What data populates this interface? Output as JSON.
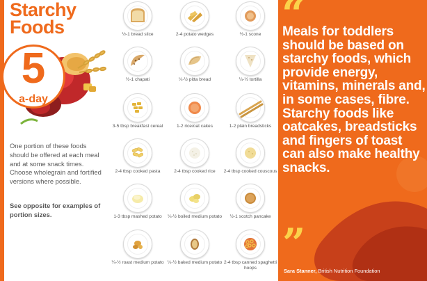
{
  "left": {
    "title_line1": "Starchy",
    "title_line2": "Foods",
    "badge_number": "5",
    "badge_sub": "a-day",
    "intro": "One portion of these foods should be offered at each meal and at some snack times. Choose wholegrain and fortified versions where possible.",
    "see_opposite": "See opposite for examples of portion sizes."
  },
  "foods": [
    {
      "label": "½-1 bread slice",
      "icon": "bread-slice-icon"
    },
    {
      "label": "2-4 potato wedges",
      "icon": "potato-wedges-icon"
    },
    {
      "label": "½-1 scone",
      "icon": "scone-icon"
    },
    {
      "label": "½-1 chapati",
      "icon": "chapati-icon"
    },
    {
      "label": "¼-½ pitta bread",
      "icon": "pitta-bread-icon"
    },
    {
      "label": "¼-½ tortilla",
      "icon": "tortilla-icon"
    },
    {
      "label": "3-5 tbsp breakfast cereal",
      "icon": "cereal-icon"
    },
    {
      "label": "1-2 rice/oat cakes",
      "icon": "rice-cake-icon"
    },
    {
      "label": "1-2 plain breadsticks",
      "icon": "breadsticks-icon"
    },
    {
      "label": "2-4 tbsp cooked pasta",
      "icon": "pasta-icon"
    },
    {
      "label": "2-4 tbsp cooked rice",
      "icon": "rice-icon"
    },
    {
      "label": "2-4 tbsp cooked couscous",
      "icon": "couscous-icon"
    },
    {
      "label": "1-3 tbsp mashed potato",
      "icon": "mashed-potato-icon"
    },
    {
      "label": "¼-½ boiled medium potato",
      "icon": "boiled-potato-icon"
    },
    {
      "label": "½-1 scotch pancake",
      "icon": "pancake-icon"
    },
    {
      "label": "¼-½ roast medium potato",
      "icon": "roast-potato-icon"
    },
    {
      "label": "¼-½ baked medium potato",
      "icon": "baked-potato-icon"
    },
    {
      "label": "2-4 tbsp canned spaghetti hoops",
      "icon": "spaghetti-hoops-icon"
    }
  ],
  "right": {
    "quote": "Meals for toddlers should be based on starchy foods, which provide energy, vitamins, minerals and, in some cases, fibre. Starchy foods like oatcakes, breadsticks and fingers of toast can also make healthy snacks.",
    "attribution_name": "Sara Stanner,",
    "attribution_org": "British Nutrition Foundation"
  },
  "colors": {
    "brand_orange": "#ef6a1c",
    "quote_mark_yellow": "#fbd24a"
  }
}
